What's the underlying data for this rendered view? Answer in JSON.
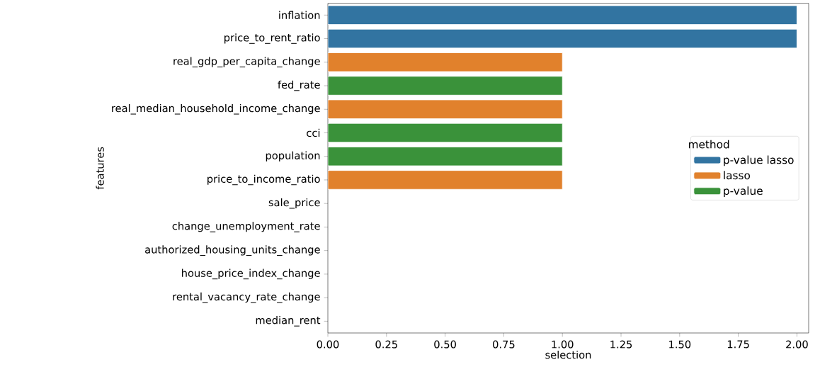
{
  "chart_data": {
    "type": "bar",
    "orientation": "horizontal",
    "xlabel": "selection",
    "ylabel": "features",
    "legend_title": "method",
    "legend": "right",
    "categories": [
      "inflation",
      "price_to_rent_ratio",
      "real_gdp_per_capita_change",
      "fed_rate",
      "real_median_household_income_change",
      "cci",
      "population",
      "price_to_income_ratio",
      "sale_price",
      "change_unemployment_rate",
      "authorized_housing_units_change",
      "house_price_index_change",
      "rental_vacancy_rate_change",
      "median_rent"
    ],
    "series": [
      {
        "name": "p-value lasso",
        "color": "#3274a1",
        "values": [
          2,
          2,
          null,
          null,
          null,
          null,
          null,
          null,
          null,
          null,
          null,
          null,
          null,
          null
        ]
      },
      {
        "name": "lasso",
        "color": "#e1812c",
        "values": [
          null,
          null,
          1,
          null,
          1,
          null,
          null,
          1,
          null,
          null,
          null,
          null,
          null,
          null
        ]
      },
      {
        "name": "p-value",
        "color": "#3a923a",
        "values": [
          null,
          null,
          null,
          1,
          null,
          1,
          1,
          null,
          null,
          null,
          null,
          null,
          null,
          null
        ]
      }
    ],
    "xlim": [
      0,
      2.05
    ],
    "xticks": [
      {
        "value": 0,
        "label": "0.00"
      },
      {
        "value": 0.25,
        "label": "0.25"
      },
      {
        "value": 0.5,
        "label": "0.50"
      },
      {
        "value": 0.75,
        "label": "0.75"
      },
      {
        "value": 1,
        "label": "1.00"
      },
      {
        "value": 1.25,
        "label": "1.25"
      },
      {
        "value": 1.5,
        "label": "1.50"
      },
      {
        "value": 1.75,
        "label": "1.75"
      },
      {
        "value": 2,
        "label": "2.00"
      }
    ]
  }
}
